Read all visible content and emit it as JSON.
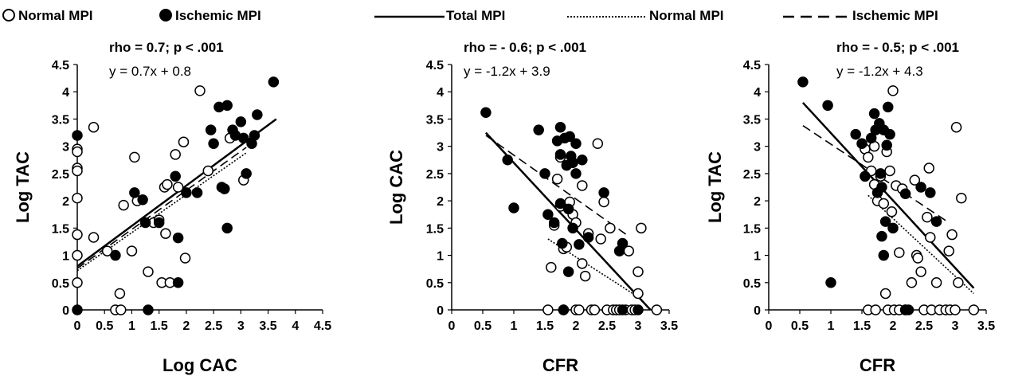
{
  "legend": {
    "normal_points": "Normal MPI",
    "ischemic_points": "Ischemic MPI",
    "total_line": "Total MPI",
    "normal_line": "Normal MPI",
    "ischemic_line": "Ischemic MPI"
  },
  "chart_data": [
    {
      "type": "scatter",
      "stat_label": "rho = 0.7; p < .001",
      "equation": "y = 0.7x + 0.8",
      "xlabel": "Log CAC",
      "ylabel": "Log TAC",
      "xlim": [
        0,
        4.5
      ],
      "ylim": [
        0,
        4.5
      ],
      "xticks": [
        "0",
        "0.5",
        "1",
        "1.5",
        "2",
        "2.5",
        "3",
        "3.5",
        "4",
        "4.5"
      ],
      "yticks": [
        "0",
        "0.5",
        "1",
        "1.5",
        "2",
        "2.5",
        "3",
        "3.5",
        "4",
        "4.5"
      ],
      "series": [
        {
          "legend_key": "normal_points",
          "marker": "open-circle",
          "points": [
            [
              0,
              2.95
            ],
            [
              0,
              2.9
            ],
            [
              0,
              2.6
            ],
            [
              0,
              2.55
            ],
            [
              0,
              2.05
            ],
            [
              0,
              1.38
            ],
            [
              0,
              1.0
            ],
            [
              0,
              0.5
            ],
            [
              0.3,
              3.35
            ],
            [
              0.3,
              1.33
            ],
            [
              0.55,
              1.08
            ],
            [
              0.7,
              0.0
            ],
            [
              0.78,
              0.3
            ],
            [
              0.8,
              0.0
            ],
            [
              0.85,
              1.92
            ],
            [
              1.0,
              1.08
            ],
            [
              1.05,
              2.8
            ],
            [
              1.1,
              2.0
            ],
            [
              1.3,
              0.7
            ],
            [
              1.4,
              1.6
            ],
            [
              1.5,
              1.65
            ],
            [
              1.55,
              0.5
            ],
            [
              1.6,
              2.25
            ],
            [
              1.62,
              1.4
            ],
            [
              1.65,
              2.3
            ],
            [
              1.7,
              0.5
            ],
            [
              1.8,
              2.85
            ],
            [
              1.85,
              2.25
            ],
            [
              1.95,
              3.08
            ],
            [
              1.98,
              0.95
            ],
            [
              2.25,
              4.02
            ],
            [
              2.4,
              2.55
            ],
            [
              2.8,
              3.15
            ],
            [
              3.05,
              2.38
            ]
          ]
        },
        {
          "legend_key": "ischemic_points",
          "marker": "filled-circle",
          "points": [
            [
              0,
              3.2
            ],
            [
              0,
              0.0
            ],
            [
              0.7,
              1.0
            ],
            [
              1.05,
              2.15
            ],
            [
              1.2,
              2.02
            ],
            [
              1.25,
              1.6
            ],
            [
              1.3,
              0.0
            ],
            [
              1.5,
              1.6
            ],
            [
              1.8,
              2.45
            ],
            [
              1.85,
              1.32
            ],
            [
              1.85,
              0.5
            ],
            [
              2.0,
              2.15
            ],
            [
              2.2,
              2.15
            ],
            [
              2.45,
              3.3
            ],
            [
              2.5,
              3.05
            ],
            [
              2.6,
              3.72
            ],
            [
              2.65,
              2.25
            ],
            [
              2.7,
              2.22
            ],
            [
              2.75,
              3.75
            ],
            [
              2.75,
              1.5
            ],
            [
              2.85,
              3.3
            ],
            [
              2.9,
              3.2
            ],
            [
              3.0,
              3.45
            ],
            [
              3.05,
              3.15
            ],
            [
              3.1,
              2.5
            ],
            [
              3.2,
              3.05
            ],
            [
              3.25,
              3.2
            ],
            [
              3.3,
              3.58
            ],
            [
              3.6,
              4.18
            ]
          ]
        }
      ],
      "lines": [
        {
          "legend_key": "total_line",
          "style": "solid",
          "from": [
            0,
            0.8
          ],
          "to": [
            3.65,
            3.5
          ]
        },
        {
          "legend_key": "normal_line",
          "style": "dotted",
          "from": [
            0,
            0.72
          ],
          "to": [
            3.1,
            2.88
          ]
        },
        {
          "legend_key": "ischemic_line",
          "style": "dashed",
          "from": [
            0,
            0.76
          ],
          "to": [
            3.1,
            2.98
          ]
        }
      ]
    },
    {
      "type": "scatter",
      "stat_label": "rho = - 0.6; p < .001",
      "equation": "y = -1.2x + 3.9",
      "xlabel": "CFR",
      "ylabel": "Log CAC",
      "xlim": [
        0,
        3.5
      ],
      "ylim": [
        0,
        4.5
      ],
      "xticks": [
        "0",
        "0.5",
        "1",
        "1.5",
        "2",
        "2.5",
        "3",
        "3.5"
      ],
      "yticks": [
        "0",
        "0.5",
        "1",
        "1.5",
        "2",
        "2.5",
        "3",
        "3.5",
        "4",
        "4.5"
      ],
      "series": [
        {
          "legend_key": "normal_points",
          "marker": "open-circle",
          "points": [
            [
              1.55,
              0.0
            ],
            [
              1.6,
              0.78
            ],
            [
              1.65,
              1.55
            ],
            [
              1.7,
              2.4
            ],
            [
              1.75,
              2.8
            ],
            [
              1.75,
              1.9
            ],
            [
              1.8,
              1.12
            ],
            [
              1.8,
              0.0
            ],
            [
              1.85,
              1.15
            ],
            [
              1.9,
              1.98
            ],
            [
              1.95,
              1.75
            ],
            [
              2.0,
              1.6
            ],
            [
              2.0,
              0.0
            ],
            [
              2.05,
              0.0
            ],
            [
              2.1,
              2.28
            ],
            [
              2.1,
              0.85
            ],
            [
              2.15,
              0.62
            ],
            [
              2.2,
              1.4
            ],
            [
              2.25,
              0.0
            ],
            [
              2.3,
              0.0
            ],
            [
              2.35,
              3.05
            ],
            [
              2.4,
              1.3
            ],
            [
              2.45,
              1.98
            ],
            [
              2.5,
              0.0
            ],
            [
              2.55,
              1.5
            ],
            [
              2.6,
              0.0
            ],
            [
              2.65,
              0.0
            ],
            [
              2.7,
              0.0
            ],
            [
              2.8,
              0.0
            ],
            [
              2.85,
              1.08
            ],
            [
              2.9,
              0.0
            ],
            [
              2.95,
              0.0
            ],
            [
              3.0,
              0.7
            ],
            [
              3.0,
              0.3
            ],
            [
              3.05,
              1.5
            ],
            [
              3.3,
              0.0
            ]
          ]
        },
        {
          "legend_key": "ischemic_points",
          "marker": "filled-circle",
          "points": [
            [
              0.55,
              3.62
            ],
            [
              0.9,
              2.75
            ],
            [
              1.0,
              1.87
            ],
            [
              1.4,
              3.3
            ],
            [
              1.5,
              2.5
            ],
            [
              1.55,
              1.75
            ],
            [
              1.65,
              1.6
            ],
            [
              1.7,
              3.1
            ],
            [
              1.75,
              3.35
            ],
            [
              1.75,
              2.85
            ],
            [
              1.75,
              1.95
            ],
            [
              1.78,
              1.22
            ],
            [
              1.8,
              0.0
            ],
            [
              1.82,
              3.15
            ],
            [
              1.85,
              2.65
            ],
            [
              1.88,
              1.85
            ],
            [
              1.88,
              0.7
            ],
            [
              1.9,
              3.18
            ],
            [
              1.92,
              2.82
            ],
            [
              1.95,
              2.7
            ],
            [
              1.95,
              1.5
            ],
            [
              2.0,
              3.05
            ],
            [
              2.0,
              2.5
            ],
            [
              2.05,
              1.2
            ],
            [
              2.1,
              2.75
            ],
            [
              2.2,
              1.33
            ],
            [
              2.45,
              2.15
            ],
            [
              2.7,
              1.08
            ],
            [
              2.75,
              1.22
            ],
            [
              2.75,
              0.0
            ],
            [
              3.0,
              0.0
            ]
          ]
        }
      ],
      "lines": [
        {
          "legend_key": "total_line",
          "style": "solid",
          "from": [
            0.55,
            3.25
          ],
          "to": [
            3.2,
            0.0
          ]
        },
        {
          "legend_key": "normal_line",
          "style": "dotted",
          "from": [
            1.55,
            1.3
          ],
          "to": [
            3.05,
            0.2
          ]
        },
        {
          "legend_key": "ischemic_line",
          "style": "dashed",
          "from": [
            0.55,
            3.2
          ],
          "to": [
            2.85,
            1.35
          ]
        }
      ]
    },
    {
      "type": "scatter",
      "stat_label": "rho = - 0.5; p < .001",
      "equation": "y = -1.2x + 4.3",
      "xlabel": "CFR",
      "ylabel": "Log TAC",
      "xlim": [
        0,
        3.5
      ],
      "ylim": [
        0,
        4.5
      ],
      "xticks": [
        "0",
        "0.5",
        "1",
        "1.5",
        "2",
        "2.5",
        "3",
        "3.5"
      ],
      "yticks": [
        "0",
        "0.5",
        "1",
        "1.5",
        "2",
        "2.5",
        "3",
        "3.5",
        "4",
        "4.5"
      ],
      "series": [
        {
          "legend_key": "normal_points",
          "marker": "open-circle",
          "points": [
            [
              1.55,
              2.95
            ],
            [
              1.6,
              2.8
            ],
            [
              1.6,
              0.0
            ],
            [
              1.65,
              2.55
            ],
            [
              1.7,
              3.0
            ],
            [
              1.7,
              2.3
            ],
            [
              1.72,
              0.0
            ],
            [
              1.75,
              2.0
            ],
            [
              1.8,
              2.45
            ],
            [
              1.85,
              1.95
            ],
            [
              1.88,
              0.3
            ],
            [
              1.9,
              2.9
            ],
            [
              1.92,
              0.0
            ],
            [
              1.95,
              2.55
            ],
            [
              1.98,
              1.8
            ],
            [
              2.0,
              4.02
            ],
            [
              2.02,
              0.0
            ],
            [
              2.05,
              2.28
            ],
            [
              2.1,
              1.05
            ],
            [
              2.1,
              0.0
            ],
            [
              2.15,
              2.22
            ],
            [
              2.2,
              0.0
            ],
            [
              2.3,
              0.5
            ],
            [
              2.35,
              2.38
            ],
            [
              2.38,
              1.0
            ],
            [
              2.4,
              0.95
            ],
            [
              2.45,
              0.7
            ],
            [
              2.5,
              0.0
            ],
            [
              2.55,
              1.7
            ],
            [
              2.58,
              2.6
            ],
            [
              2.6,
              1.33
            ],
            [
              2.62,
              0.0
            ],
            [
              2.7,
              0.5
            ],
            [
              2.75,
              0.0
            ],
            [
              2.85,
              0.0
            ],
            [
              2.9,
              1.08
            ],
            [
              2.92,
              0.0
            ],
            [
              2.95,
              1.38
            ],
            [
              3.0,
              0.0
            ],
            [
              3.02,
              3.35
            ],
            [
              3.05,
              0.5
            ],
            [
              3.1,
              2.05
            ],
            [
              3.3,
              0.0
            ]
          ]
        },
        {
          "legend_key": "ischemic_points",
          "marker": "filled-circle",
          "points": [
            [
              0.55,
              4.18
            ],
            [
              0.95,
              3.75
            ],
            [
              1.0,
              0.5
            ],
            [
              1.4,
              3.22
            ],
            [
              1.5,
              3.05
            ],
            [
              1.55,
              2.45
            ],
            [
              1.65,
              3.15
            ],
            [
              1.7,
              3.6
            ],
            [
              1.72,
              3.3
            ],
            [
              1.75,
              2.15
            ],
            [
              1.78,
              3.42
            ],
            [
              1.8,
              2.5
            ],
            [
              1.82,
              2.25
            ],
            [
              1.82,
              1.35
            ],
            [
              1.85,
              3.3
            ],
            [
              1.85,
              1.0
            ],
            [
              1.88,
              1.62
            ],
            [
              1.9,
              3.02
            ],
            [
              1.92,
              3.72
            ],
            [
              1.95,
              3.22
            ],
            [
              2.0,
              1.5
            ],
            [
              2.2,
              2.13
            ],
            [
              2.2,
              0.0
            ],
            [
              2.25,
              0.0
            ],
            [
              2.45,
              2.25
            ],
            [
              2.6,
              2.15
            ],
            [
              2.7,
              1.62
            ]
          ]
        }
      ],
      "lines": [
        {
          "legend_key": "total_line",
          "style": "solid",
          "from": [
            0.55,
            3.8
          ],
          "to": [
            3.3,
            0.4
          ]
        },
        {
          "legend_key": "normal_line",
          "style": "dotted",
          "from": [
            1.6,
            2.1
          ],
          "to": [
            3.3,
            0.3
          ]
        },
        {
          "legend_key": "ischemic_line",
          "style": "dashed",
          "from": [
            0.55,
            3.38
          ],
          "to": [
            2.9,
            1.6
          ]
        }
      ]
    }
  ]
}
